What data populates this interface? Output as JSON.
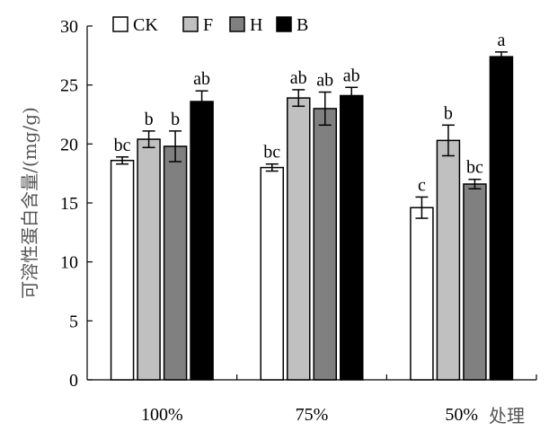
{
  "chart_data": {
    "type": "bar",
    "categories": [
      "100%",
      "75%",
      "50%"
    ],
    "xlabel": "处理",
    "ylabel": "可溶性蛋白含量/(mg/g)",
    "ylim": [
      0,
      30
    ],
    "yticks": [
      0,
      5,
      10,
      15,
      20,
      25,
      30
    ],
    "legend_position": "top-left",
    "series": [
      {
        "name": "CK",
        "color": "#ffffff",
        "values": [
          18.6,
          18.0,
          14.6
        ],
        "errors": [
          0.3,
          0.3,
          0.9
        ],
        "labels": [
          "bc",
          "bc",
          "c"
        ]
      },
      {
        "name": "F",
        "color": "#c0c0c0",
        "values": [
          20.4,
          23.9,
          20.3
        ],
        "errors": [
          0.7,
          0.7,
          1.3
        ],
        "labels": [
          "b",
          "ab",
          "b"
        ]
      },
      {
        "name": "H",
        "color": "#808080",
        "values": [
          19.8,
          23.0,
          16.6
        ],
        "errors": [
          1.3,
          1.4,
          0.4
        ],
        "labels": [
          "b",
          "ab",
          "bc"
        ]
      },
      {
        "name": "B",
        "color": "#000000",
        "values": [
          23.6,
          24.1,
          27.4
        ],
        "errors": [
          0.9,
          0.7,
          0.4
        ],
        "labels": [
          "ab",
          "ab",
          "a"
        ]
      }
    ]
  }
}
